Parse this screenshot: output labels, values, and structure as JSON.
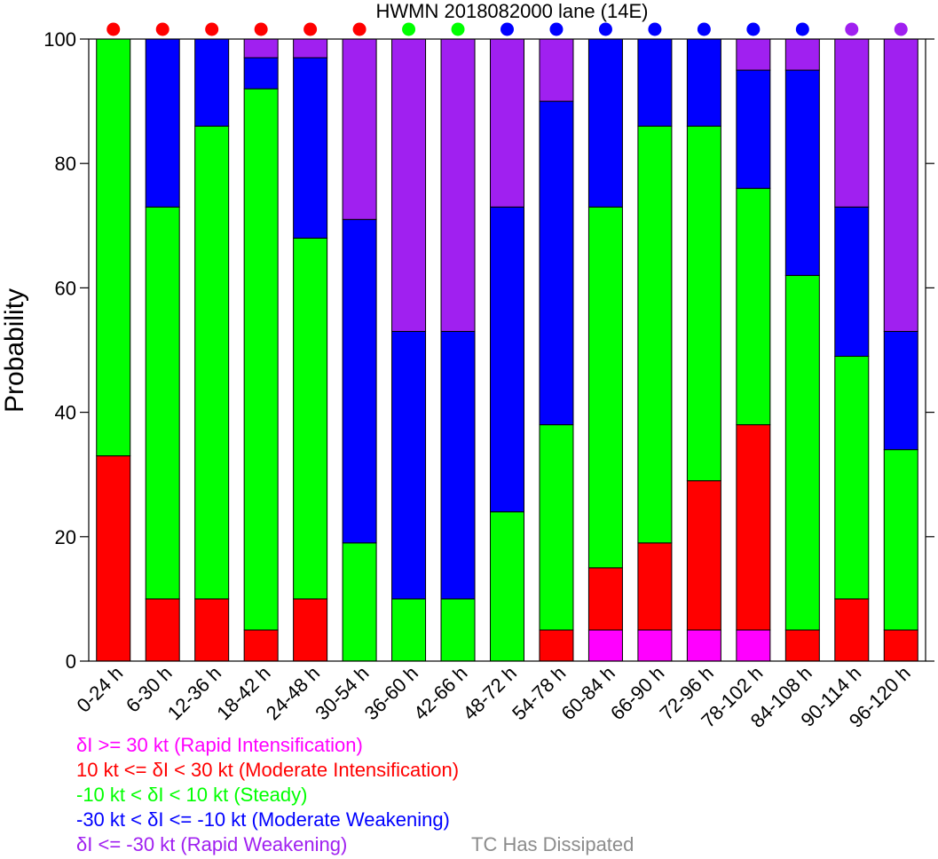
{
  "chart_data": {
    "type": "bar",
    "stacked": true,
    "title": "HWMN 2018082000 lane (14E)",
    "ylabel": "Probability",
    "ylim": [
      0,
      100
    ],
    "yticks": [
      0,
      20,
      40,
      60,
      80,
      100
    ],
    "categories": [
      "0-24 h",
      "6-30 h",
      "12-36 h",
      "18-42 h",
      "24-48 h",
      "30-54 h",
      "36-60 h",
      "42-66 h",
      "48-72 h",
      "54-78 h",
      "60-84 h",
      "66-90 h",
      "72-96 h",
      "78-102 h",
      "84-108 h",
      "90-114 h",
      "96-120 h"
    ],
    "series": [
      {
        "name": "δI >= 30 kt (Rapid Intensification)",
        "color": "#ff00ff",
        "values": [
          0,
          0,
          0,
          0,
          0,
          0,
          0,
          0,
          0,
          0,
          5,
          5,
          5,
          5,
          0,
          0,
          0
        ]
      },
      {
        "name": "10 kt <= δI < 30 kt (Moderate Intensification)",
        "color": "#ff0000",
        "values": [
          33,
          10,
          10,
          5,
          10,
          0,
          0,
          0,
          0,
          5,
          10,
          14,
          24,
          33,
          5,
          10,
          5
        ]
      },
      {
        "name": "-10 kt < δI < 10 kt (Steady)",
        "color": "#00ff00",
        "values": [
          67,
          63,
          76,
          87,
          58,
          19,
          10,
          10,
          24,
          33,
          58,
          67,
          57,
          38,
          57,
          39,
          29
        ]
      },
      {
        "name": "-30 kt < δI <= -10 kt (Moderate Weakening)",
        "color": "#0000ff",
        "values": [
          0,
          27,
          14,
          5,
          29,
          52,
          43,
          43,
          49,
          52,
          27,
          14,
          14,
          19,
          33,
          24,
          19
        ]
      },
      {
        "name": "δI <= -30 kt (Rapid Weakening)",
        "color": "#a020f0",
        "values": [
          0,
          0,
          0,
          3,
          3,
          29,
          47,
          47,
          27,
          10,
          0,
          0,
          0,
          5,
          5,
          27,
          47
        ]
      }
    ],
    "indicator_dots": [
      "#ff0000",
      "#ff0000",
      "#ff0000",
      "#ff0000",
      "#ff0000",
      "#ff0000",
      "#00ff00",
      "#00ff00",
      "#0000ff",
      "#0000ff",
      "#0000ff",
      "#0000ff",
      "#0000ff",
      "#0000ff",
      "#0000ff",
      "#a020f0",
      "#a020f0"
    ],
    "extra_legend": {
      "label": "TC Has Dissipated",
      "color": "#8c8c8c"
    }
  }
}
